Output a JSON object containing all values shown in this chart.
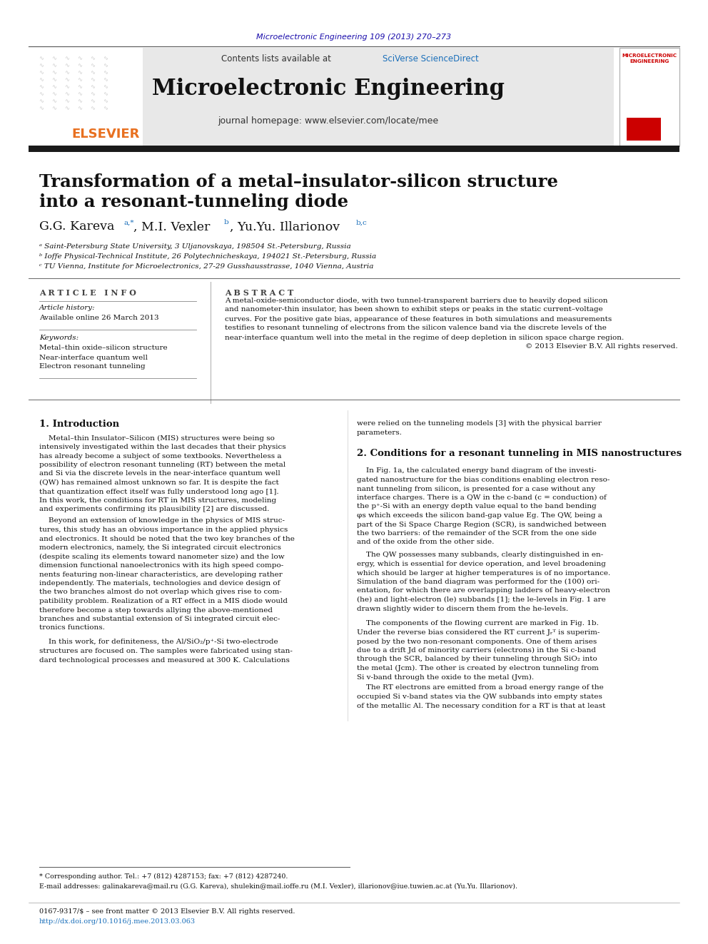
{
  "journal_ref": "Microelectronic Engineering 109 (2013) 270–273",
  "journal_ref_color": "#1a0dab",
  "header_text": "Contents lists available at",
  "sciverse_text": "SciVerse ScienceDirect",
  "sciverse_color": "#1a6fba",
  "journal_name": "Microelectronic Engineering",
  "journal_homepage": "journal homepage: www.elsevier.com/locate/mee",
  "thick_bar_color": "#1a1a1a",
  "title_line1": "Transformation of a metal–insulator-silicon structure",
  "title_line2": "into a resonant-tunneling diode",
  "affil_a": "ᵃ Saint-Petersburg State University, 3 Uljanovskaya, 198504 St.-Petersburg, Russia",
  "affil_b": "ᵇ Ioffe Physical-Technical Institute, 26 Polytechnicheskaya, 194021 St.-Petersburg, Russia",
  "affil_c": "ᶜ TU Vienna, Institute for Microelectronics, 27-29 Gusshausstrasse, 1040 Vienna, Austria",
  "article_info_label": "A R T I C L E   I N F O",
  "abstract_label": "A B S T R A C T",
  "article_history": "Article history:",
  "available_online": "Available online 26 March 2013",
  "keywords_label": "Keywords:",
  "keyword1": "Metal–thin oxide–silicon structure",
  "keyword2": "Near-interface quantum well",
  "keyword3": "Electron resonant tunneling",
  "section1_title": "1. Introduction",
  "right_col_intro": "were relied on the tunneling models [3] with the physical barrier\nparameters.",
  "section2_title": "2. Conditions for a resonant tunneling in MIS nanostructures",
  "footnote_star": "* Corresponding author. Tel.: +7 (812) 4287153; fax: +7 (812) 4287240.",
  "footnote_email": "E-mail addresses: galinakareva@mail.ru (G.G. Kareva), shulekin@mail.ioffe.ru (M.I. Vexler), illarionov@iue.tuwien.ac.at (Yu.Yu. Illarionov).",
  "footnote_issn": "0167-9317/$ – see front matter © 2013 Elsevier B.V. All rights reserved.",
  "footnote_doi": "http://dx.doi.org/10.1016/j.mee.2013.03.063",
  "footnote_doi_color": "#1a6fba",
  "bg_header_color": "#e8e8e8",
  "elsevier_color": "#e87020",
  "link_color": "#1a6fba",
  "text_color": "#000000"
}
